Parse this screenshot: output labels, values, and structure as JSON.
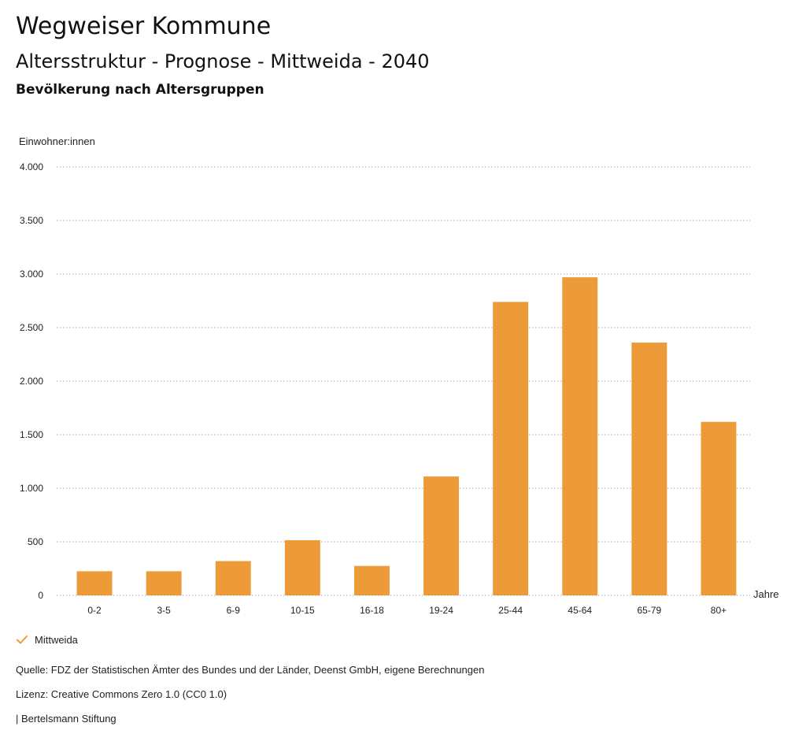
{
  "header": {
    "title": "Wegweiser Kommune",
    "subtitle": "Altersstruktur - Prognose - Mittweida - 2040",
    "chart_heading": "Bevölkerung nach Altersgruppen"
  },
  "chart_data": {
    "type": "bar",
    "title": "Bevölkerung nach Altersgruppen",
    "ylabel": "Einwohner:innen",
    "xlabel": "Jahre",
    "categories": [
      "0-2",
      "3-5",
      "6-9",
      "10-15",
      "16-18",
      "19-24",
      "25-44",
      "45-64",
      "65-79",
      "80+"
    ],
    "series": [
      {
        "name": "Mittweida",
        "values": [
          225,
          225,
          320,
          515,
          275,
          1110,
          2740,
          2970,
          2360,
          1620
        ]
      }
    ],
    "ylim": [
      0,
      4000
    ],
    "yticks": [
      0,
      500,
      1000,
      1500,
      2000,
      2500,
      3000,
      3500,
      4000
    ],
    "ytick_labels": [
      "0",
      "500",
      "1.000",
      "1.500",
      "2.000",
      "2.500",
      "3.000",
      "3.500",
      "4.000"
    ],
    "grid": true,
    "legend": "bottom-left",
    "colors": {
      "bar": "#ed9a38",
      "grid": "#aaaaaa",
      "text": "#222222"
    }
  },
  "legend": {
    "items": [
      {
        "label": "Mittweida",
        "icon": "check-icon",
        "color": "#ed9a38"
      }
    ]
  },
  "footer": {
    "source": "Quelle: FDZ der Statistischen Ämter des Bundes und der Länder, Deenst GmbH, eigene Berechnungen",
    "license": "Lizenz: Creative Commons Zero 1.0 (CC0 1.0)",
    "publisher": "| Bertelsmann Stiftung"
  }
}
